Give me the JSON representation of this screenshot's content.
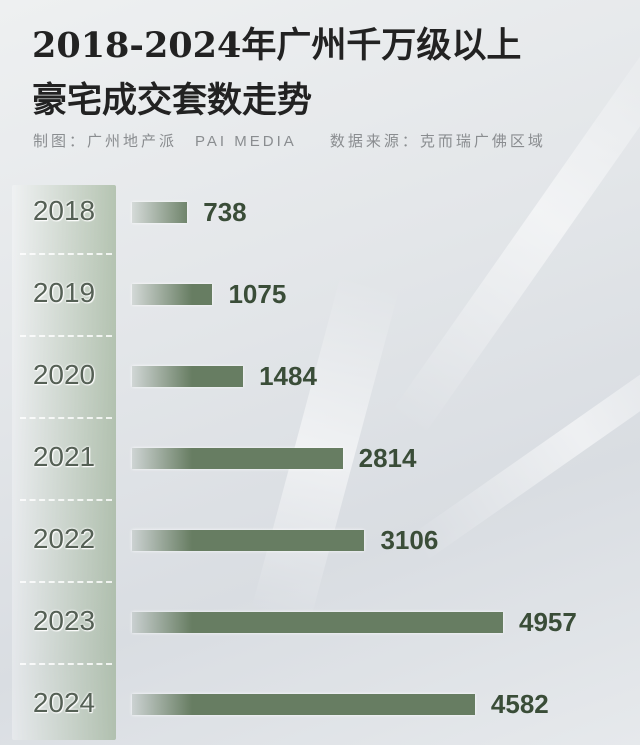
{
  "chart_data": {
    "type": "bar",
    "orientation": "horizontal",
    "title": "2018-2024年广州千万级以上豪宅成交套数走势",
    "title_lines": [
      "2018-2024年广州千万级以上",
      "豪宅成交套数走势"
    ],
    "credits": [
      "制图：广州地产派　PAI MEDIA",
      "数据来源：克而瑞广佛区域"
    ],
    "categories": [
      "2018",
      "2019",
      "2020",
      "2021",
      "2022",
      "2023",
      "2024"
    ],
    "values": [
      738,
      1075,
      1484,
      2814,
      3106,
      4957,
      4582
    ],
    "xlabel": "",
    "ylabel": "",
    "grid": false,
    "bar_color": "#677d62",
    "label_color": "#3a4d38"
  }
}
